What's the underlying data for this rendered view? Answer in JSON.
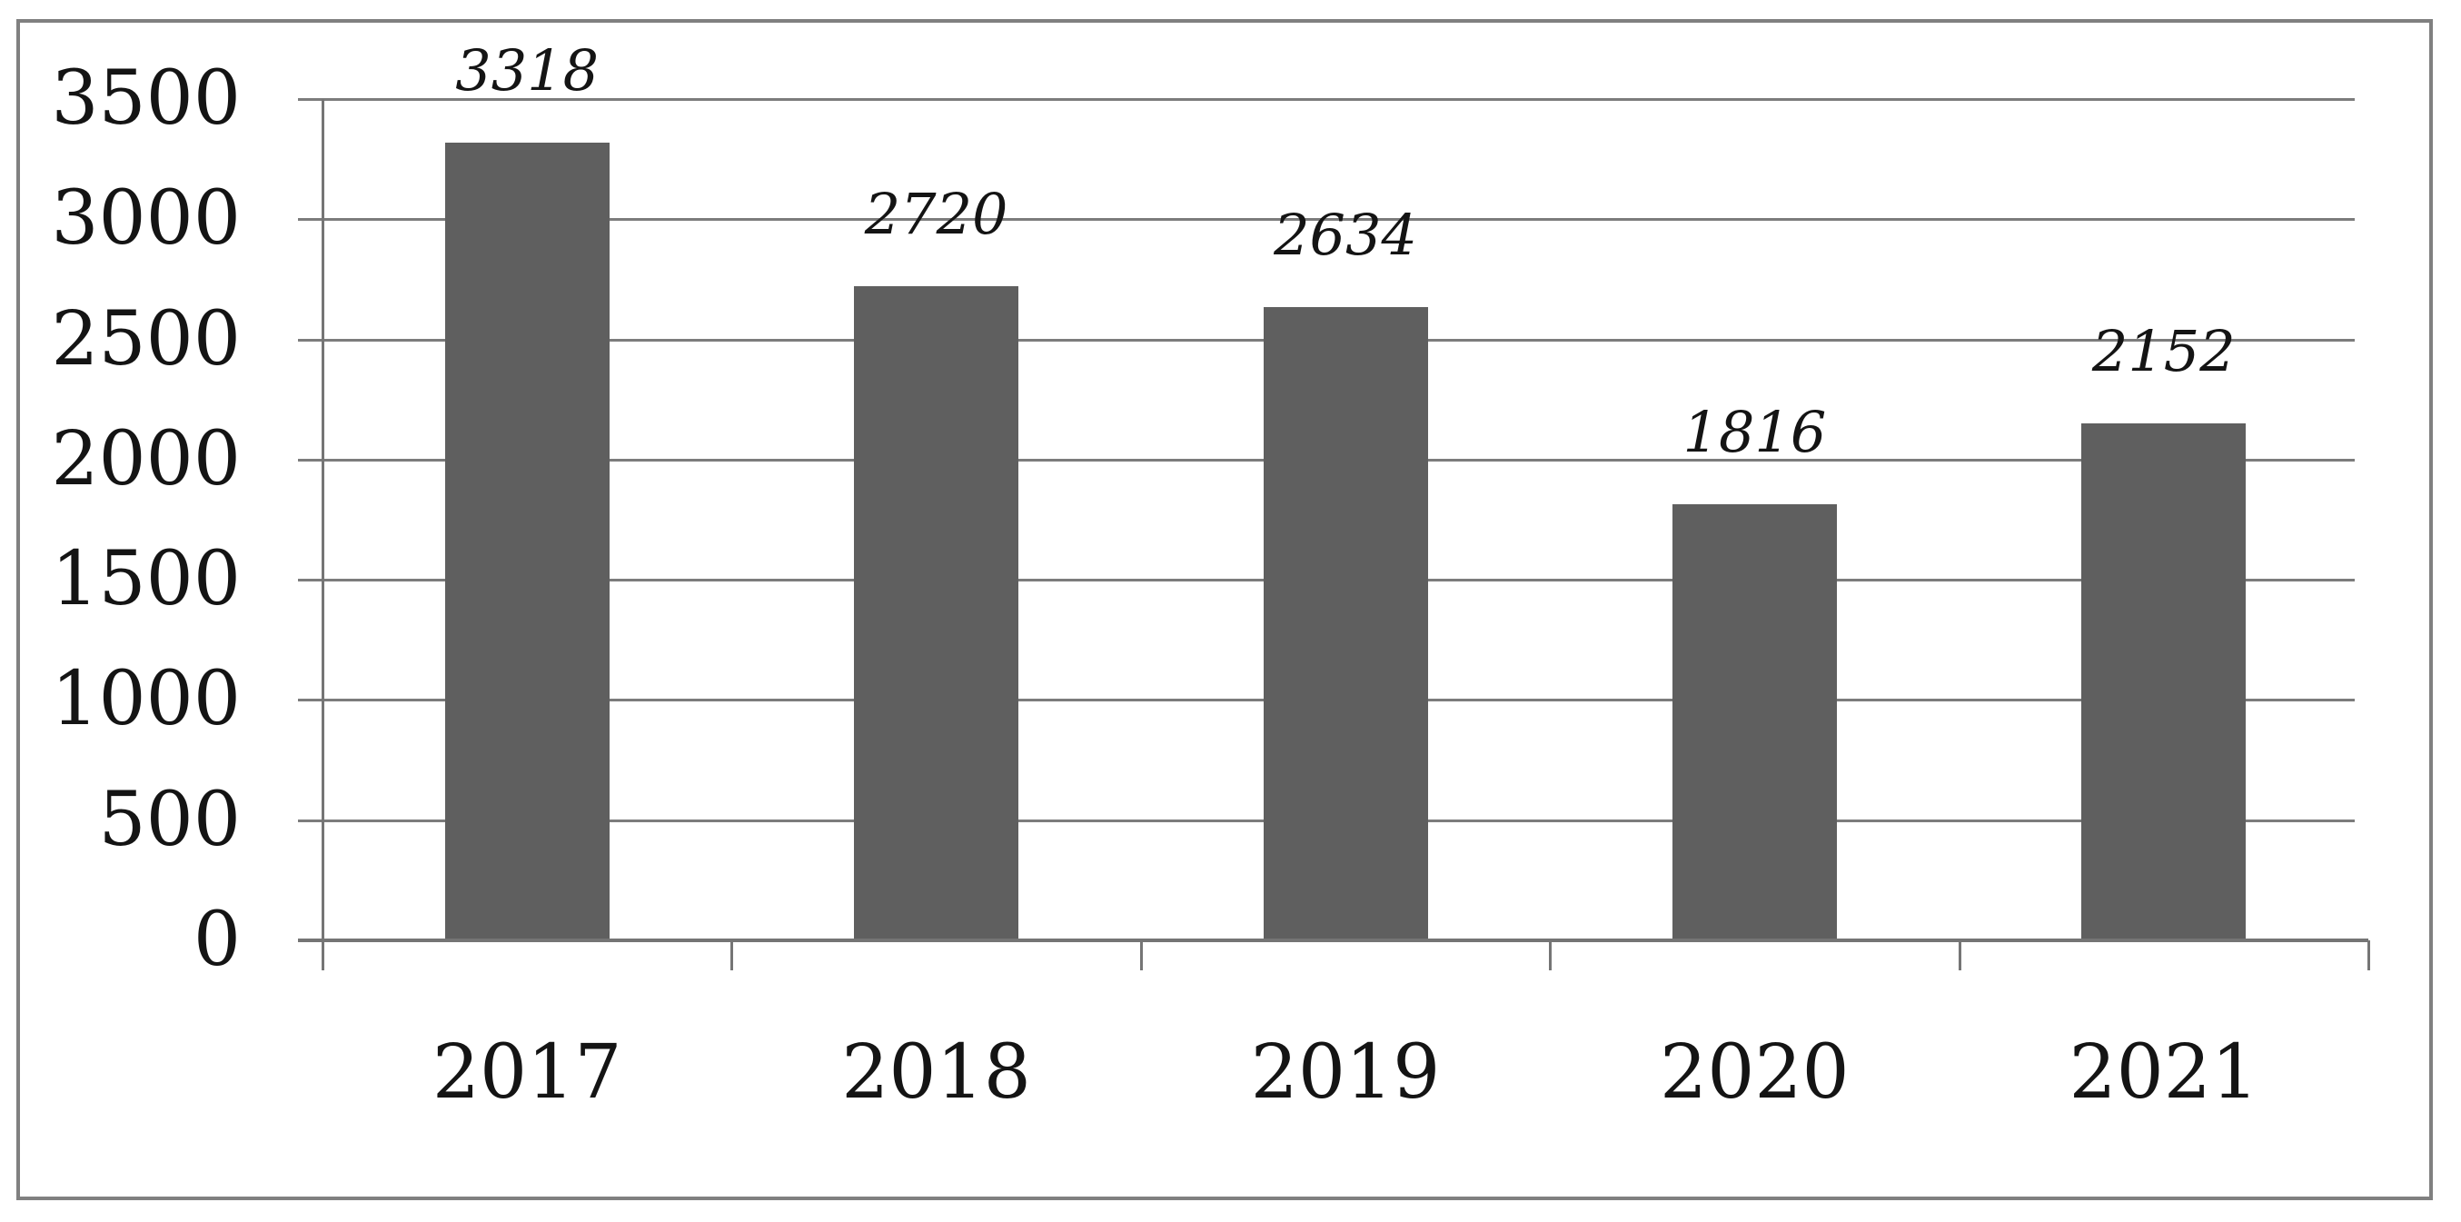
{
  "figure": {
    "background": "#ffffff",
    "border_color": "#808080"
  },
  "chart_data": {
    "type": "bar",
    "categories": [
      "2017",
      "2018",
      "2019",
      "2020",
      "2021"
    ],
    "values": [
      3318,
      2720,
      2634,
      1816,
      2152
    ],
    "data_labels": [
      "3318",
      "2720",
      "2634",
      "1816",
      "2152"
    ],
    "y_tick_labels": [
      "0",
      "500",
      "1000",
      "1500",
      "2000",
      "2500",
      "3000",
      "3500"
    ],
    "y_ticks": [
      0,
      500,
      1000,
      1500,
      2000,
      2500,
      3000,
      3500
    ],
    "ylim": [
      0,
      3500
    ],
    "title": "",
    "xlabel": "",
    "ylabel": "",
    "grid": true,
    "legend": "none",
    "colors": {
      "bar": "#5f5f5f",
      "gridline": "#7c7c7c",
      "axis": "#757575",
      "text": "#141414"
    }
  }
}
